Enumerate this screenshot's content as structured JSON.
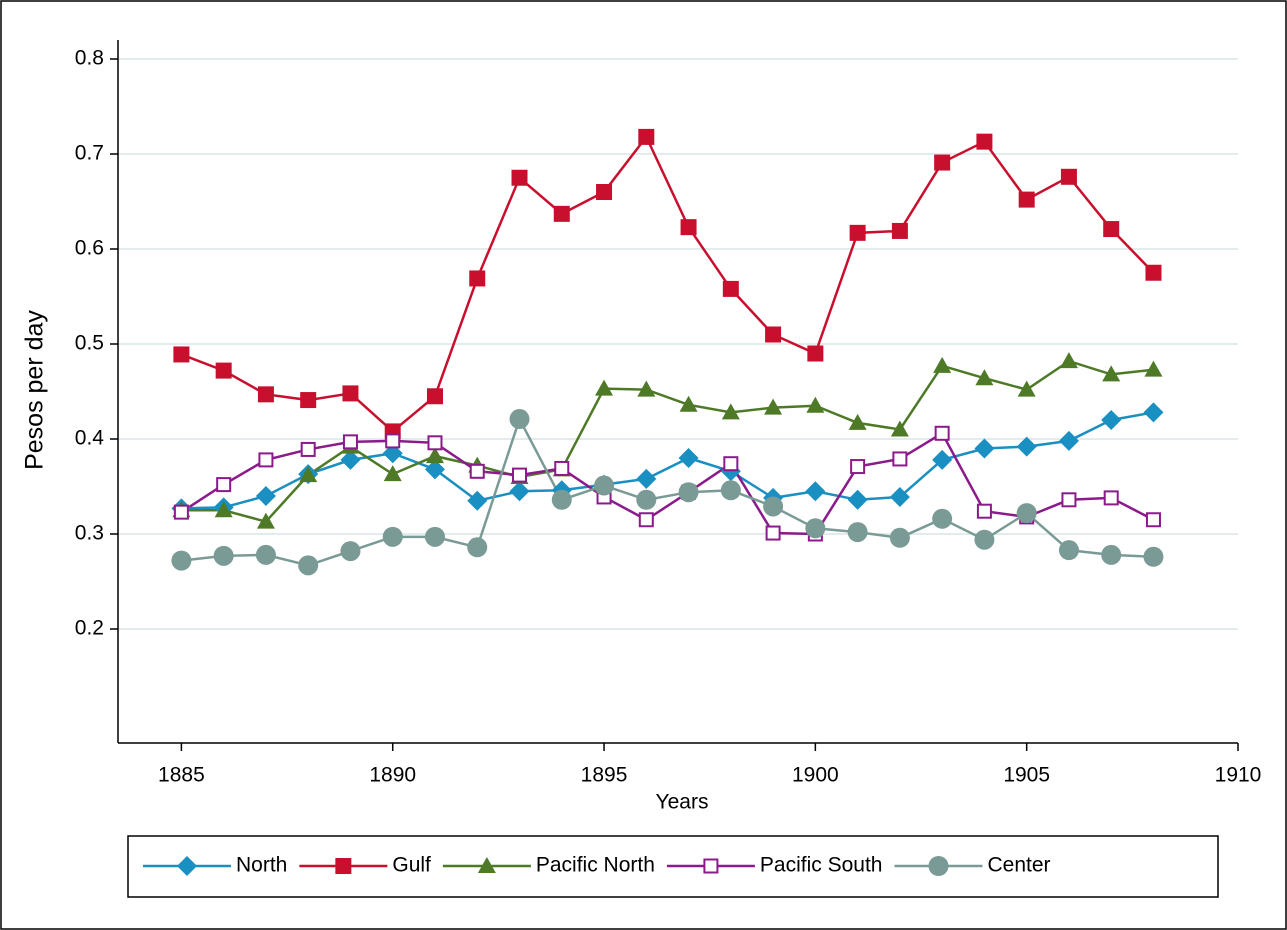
{
  "chart_data": {
    "type": "line",
    "x_label": "Years",
    "y_label": "Pesos per day",
    "x": [
      1885,
      1886,
      1887,
      1888,
      1889,
      1890,
      1891,
      1892,
      1893,
      1894,
      1895,
      1896,
      1897,
      1898,
      1899,
      1900,
      1901,
      1902,
      1903,
      1904,
      1905,
      1906,
      1907,
      1908
    ],
    "xlim": [
      1883.5,
      1910
    ],
    "xticks": [
      1885,
      1890,
      1895,
      1900,
      1905,
      1910
    ],
    "ylim": [
      0.08,
      0.82
    ],
    "yticks": [
      0.2,
      0.3,
      0.4,
      0.5,
      0.6,
      0.7,
      0.8
    ],
    "grid": true,
    "legend": "bottom",
    "series": [
      {
        "name": "North",
        "color": "#1a8fc1",
        "marker": "diamond",
        "values": [
          0.327,
          0.328,
          0.34,
          0.363,
          0.378,
          0.385,
          0.368,
          0.335,
          0.345,
          0.346,
          0.352,
          0.358,
          0.38,
          0.366,
          0.338,
          0.345,
          0.336,
          0.339,
          0.378,
          0.39,
          0.392,
          0.398,
          0.42,
          0.428
        ]
      },
      {
        "name": "Gulf",
        "color": "#c8102e",
        "marker": "square",
        "values": [
          0.489,
          0.472,
          0.447,
          0.441,
          0.448,
          0.408,
          0.445,
          0.569,
          0.675,
          0.637,
          0.66,
          0.718,
          0.623,
          0.558,
          0.51,
          0.49,
          0.617,
          0.619,
          0.691,
          0.713,
          0.652,
          0.676,
          0.621,
          0.575
        ]
      },
      {
        "name": "Pacific North",
        "color": "#4e7a27",
        "marker": "triangle",
        "values": [
          0.325,
          0.325,
          0.313,
          0.362,
          0.392,
          0.363,
          0.382,
          0.372,
          0.36,
          0.368,
          0.453,
          0.452,
          0.436,
          0.428,
          0.433,
          0.435,
          0.417,
          0.41,
          0.477,
          0.464,
          0.452,
          0.482,
          0.468,
          0.473
        ]
      },
      {
        "name": "Pacific South",
        "color": "#8b1a8b",
        "marker": "hollow-square",
        "values": [
          0.323,
          0.352,
          0.378,
          0.389,
          0.397,
          0.398,
          0.396,
          0.366,
          0.362,
          0.369,
          0.339,
          0.315,
          0.344,
          0.374,
          0.301,
          0.3,
          0.371,
          0.379,
          0.406,
          0.324,
          0.318,
          0.336,
          0.338,
          0.315
        ]
      },
      {
        "name": "Center",
        "color": "#7a9a96",
        "marker": "circle",
        "values": [
          0.272,
          0.277,
          0.278,
          0.267,
          0.282,
          0.297,
          0.297,
          0.286,
          0.421,
          0.336,
          0.351,
          0.336,
          0.344,
          0.346,
          0.329,
          0.306,
          0.302,
          0.296,
          0.316,
          0.294,
          0.322,
          0.283,
          0.278,
          0.276
        ]
      }
    ]
  }
}
